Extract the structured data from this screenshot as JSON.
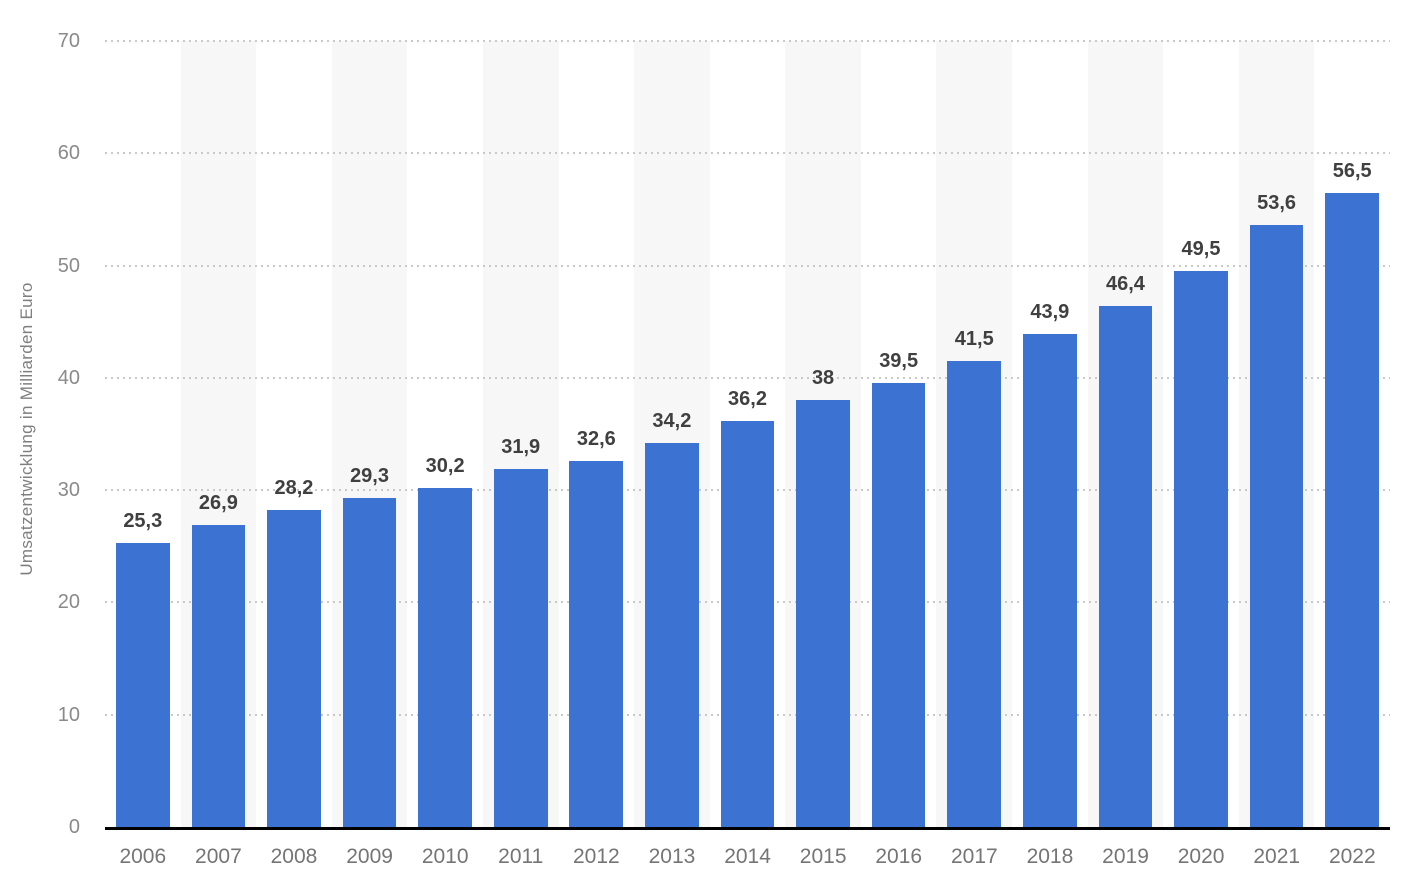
{
  "chart_data": {
    "type": "bar",
    "ylabel": "Umsatzentwicklung in Milliarden Euro",
    "categories": [
      "2006",
      "2007",
      "2008",
      "2009",
      "2010",
      "2011",
      "2012",
      "2013",
      "2014",
      "2015",
      "2016",
      "2017",
      "2018",
      "2019",
      "2020",
      "2021",
      "2022"
    ],
    "values": [
      25.3,
      26.9,
      28.2,
      29.3,
      30.2,
      31.9,
      32.6,
      34.2,
      36.2,
      38,
      39.5,
      41.5,
      43.9,
      46.4,
      49.5,
      53.6,
      56.5
    ],
    "value_labels": [
      "25,3",
      "26,9",
      "28,2",
      "29,3",
      "30,2",
      "31,9",
      "32,6",
      "34,2",
      "36,2",
      "38",
      "39,5",
      "41,5",
      "43,9",
      "46,4",
      "49,5",
      "53,6",
      "56,5"
    ],
    "ylim": [
      0,
      70
    ],
    "yticks": [
      0,
      10,
      20,
      30,
      40,
      50,
      60,
      70
    ],
    "grid": "horizontal-dotted",
    "legend": "none",
    "stripes": "alternating vertical bands behind odd columns",
    "colors": {
      "bar": "#3c73d2",
      "stripe": "#f7f7f7",
      "gridline": "#c9c9c9",
      "axis_line": "#000000",
      "tick_text": "#8a8a8a",
      "x_label_text": "#757575",
      "value_text": "#404040",
      "axis_title_text": "#7f7f7f"
    }
  }
}
